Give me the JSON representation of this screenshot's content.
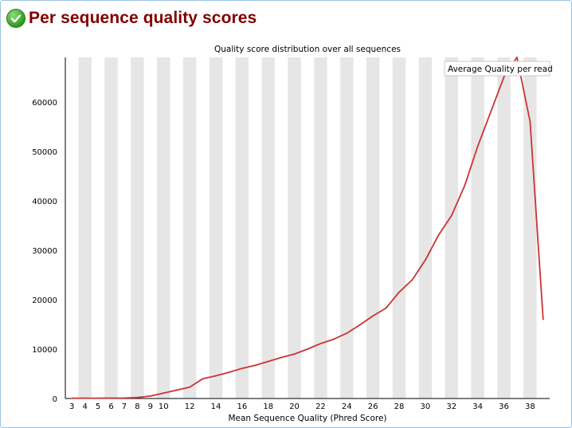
{
  "header": {
    "title": "Per sequence quality scores",
    "status_icon": "check-icon"
  },
  "chart_data": {
    "type": "line",
    "title": "Quality score distribution over all sequences",
    "xlabel": "Mean Sequence Quality (Phred Score)",
    "ylabel": "",
    "x": [
      3,
      4,
      5,
      6,
      7,
      8,
      9,
      10,
      11,
      12,
      13,
      14,
      15,
      16,
      17,
      18,
      19,
      20,
      21,
      22,
      23,
      24,
      25,
      26,
      27,
      28,
      29,
      30,
      31,
      32,
      33,
      34,
      35,
      36,
      37,
      38,
      39
    ],
    "series": [
      {
        "name": "Average Quality per read",
        "color": "#cc3333",
        "values": [
          50,
          60,
          70,
          80,
          100,
          200,
          500,
          1100,
          1700,
          2300,
          4000,
          4600,
          5300,
          6100,
          6700,
          7500,
          8300,
          9000,
          10000,
          11100,
          12000,
          13200,
          14900,
          16700,
          18300,
          21500,
          24000,
          28000,
          33000,
          37000,
          43000,
          51000,
          58000,
          65000,
          69000,
          56000,
          16000
        ]
      }
    ],
    "x_ticks": [
      3,
      4,
      5,
      6,
      7,
      8,
      9,
      10,
      12,
      14,
      16,
      18,
      20,
      22,
      24,
      26,
      28,
      30,
      32,
      34,
      36,
      38
    ],
    "y_ticks": [
      0,
      10000,
      20000,
      30000,
      40000,
      50000,
      60000
    ],
    "xlim": [
      2.5,
      39.5
    ],
    "ylim": [
      0,
      69000
    ],
    "legend_position": "top-right",
    "band_color": "#e6e6e6"
  }
}
